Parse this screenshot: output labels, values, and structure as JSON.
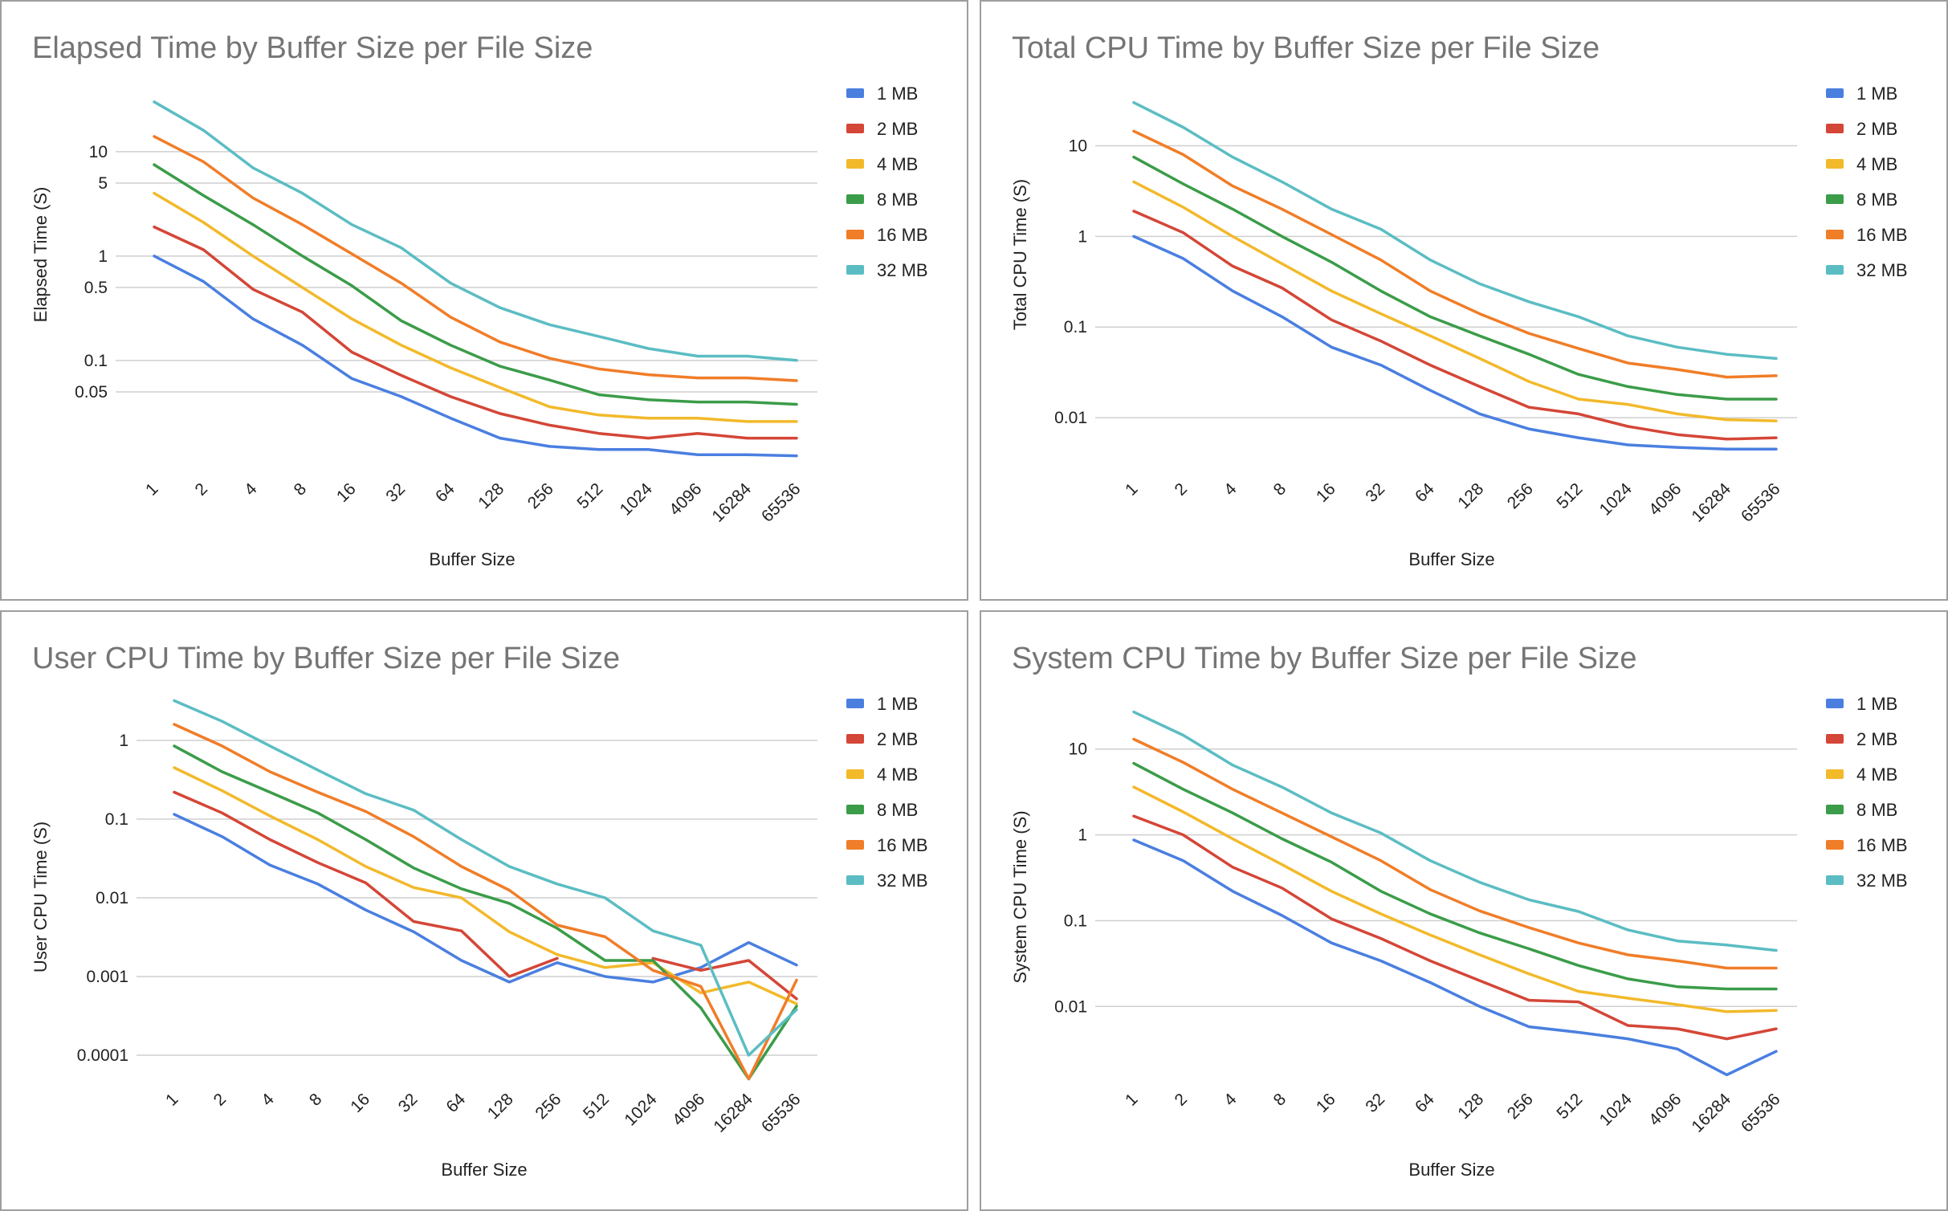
{
  "chart_data": [
    {
      "type": "line",
      "title": "Elapsed Time by Buffer Size per File Size",
      "xlabel": "Buffer Size",
      "ylabel": "Elapsed Time (S)",
      "yscale": "log",
      "ylim": [
        0.0085,
        50
      ],
      "yticks": [
        10,
        5,
        1,
        0.5,
        0.1,
        0.05
      ],
      "ytick_labels": [
        "10",
        "5",
        "1",
        "0.5",
        "0.1",
        "0.05"
      ],
      "grid": true,
      "legend": "right",
      "categories": [
        "1",
        "2",
        "4",
        "8",
        "16",
        "32",
        "64",
        "128",
        "256",
        "512",
        "1024",
        "4096",
        "16284",
        "65536"
      ],
      "series": [
        {
          "name": "1 MB",
          "color": "#4a7fe0",
          "values": [
            1.0,
            0.57,
            0.25,
            0.14,
            0.067,
            0.045,
            0.028,
            0.018,
            0.015,
            0.014,
            0.014,
            0.0125,
            0.0125,
            0.0122
          ]
        },
        {
          "name": "2 MB",
          "color": "#d44637",
          "values": [
            1.9,
            1.15,
            0.48,
            0.29,
            0.12,
            0.072,
            0.045,
            0.031,
            0.024,
            0.02,
            0.018,
            0.02,
            0.018,
            0.018
          ]
        },
        {
          "name": "4 MB",
          "color": "#f2b92b",
          "values": [
            4.0,
            2.1,
            1.0,
            0.5,
            0.25,
            0.14,
            0.085,
            0.055,
            0.036,
            0.03,
            0.028,
            0.028,
            0.026,
            0.026
          ]
        },
        {
          "name": "8 MB",
          "color": "#3b9c49",
          "values": [
            7.5,
            3.8,
            2.0,
            1.0,
            0.52,
            0.24,
            0.14,
            0.088,
            0.065,
            0.047,
            0.042,
            0.04,
            0.04,
            0.038
          ]
        },
        {
          "name": "16 MB",
          "color": "#f07d28",
          "values": [
            14,
            8.0,
            3.6,
            2.0,
            1.05,
            0.55,
            0.26,
            0.15,
            0.105,
            0.083,
            0.073,
            0.068,
            0.068,
            0.064
          ]
        },
        {
          "name": "32 MB",
          "color": "#5bbdc3",
          "values": [
            30,
            16,
            7.0,
            4.0,
            2.0,
            1.2,
            0.55,
            0.32,
            0.22,
            0.17,
            0.13,
            0.11,
            0.11,
            0.1
          ]
        }
      ]
    },
    {
      "type": "line",
      "title": "Total CPU Time by Buffer Size per File Size",
      "xlabel": "Buffer Size",
      "ylabel": "Total CPU Time (S)",
      "yscale": "log",
      "ylim": [
        0.0025,
        55
      ],
      "yticks": [
        10,
        1,
        0.1,
        0.01
      ],
      "ytick_labels": [
        "10",
        "1",
        "0.1",
        "0.01"
      ],
      "grid": true,
      "legend": "right",
      "categories": [
        "1",
        "2",
        "4",
        "8",
        "16",
        "32",
        "64",
        "128",
        "256",
        "512",
        "1024",
        "4096",
        "16284",
        "65536"
      ],
      "series": [
        {
          "name": "1 MB",
          "color": "#4a7fe0",
          "values": [
            1.0,
            0.57,
            0.25,
            0.13,
            0.06,
            0.038,
            0.02,
            0.011,
            0.0075,
            0.006,
            0.005,
            0.0047,
            0.0045,
            0.0045
          ]
        },
        {
          "name": "2 MB",
          "color": "#d44637",
          "values": [
            1.9,
            1.1,
            0.47,
            0.27,
            0.12,
            0.07,
            0.038,
            0.022,
            0.013,
            0.011,
            0.008,
            0.0065,
            0.0058,
            0.006
          ]
        },
        {
          "name": "4 MB",
          "color": "#f2b92b",
          "values": [
            4.0,
            2.1,
            1.0,
            0.5,
            0.25,
            0.14,
            0.08,
            0.045,
            0.025,
            0.016,
            0.014,
            0.011,
            0.0095,
            0.0092
          ]
        },
        {
          "name": "8 MB",
          "color": "#3b9c49",
          "values": [
            7.5,
            3.8,
            2.0,
            1.0,
            0.52,
            0.25,
            0.13,
            0.08,
            0.05,
            0.03,
            0.022,
            0.018,
            0.016,
            0.016
          ]
        },
        {
          "name": "16 MB",
          "color": "#f07d28",
          "values": [
            14.5,
            8.0,
            3.6,
            2.0,
            1.05,
            0.55,
            0.25,
            0.14,
            0.085,
            0.058,
            0.04,
            0.034,
            0.028,
            0.029
          ]
        },
        {
          "name": "32 MB",
          "color": "#5bbdc3",
          "values": [
            30,
            16,
            7.5,
            4.0,
            2.0,
            1.2,
            0.55,
            0.3,
            0.19,
            0.13,
            0.08,
            0.06,
            0.05,
            0.045
          ]
        }
      ]
    },
    {
      "type": "line",
      "title": "User CPU Time by Buffer Size per File Size",
      "xlabel": "Buffer Size",
      "ylabel": "User CPU Time (S)",
      "yscale": "log",
      "ylim": [
        4.5e-05,
        4.5
      ],
      "yticks": [
        1,
        0.1,
        0.01,
        0.001,
        0.0001
      ],
      "ytick_labels": [
        "1",
        "0.1",
        "0.01",
        "0.001",
        "0.0001"
      ],
      "grid": true,
      "legend": "right",
      "categories": [
        "1",
        "2",
        "4",
        "8",
        "16",
        "32",
        "64",
        "128",
        "256",
        "512",
        "1024",
        "4096",
        "16284",
        "65536"
      ],
      "series": [
        {
          "name": "1 MB",
          "color": "#4a7fe0",
          "values": [
            0.115,
            0.06,
            0.026,
            0.015,
            0.007,
            0.0037,
            0.0016,
            0.00085,
            0.0015,
            0.001,
            0.00085,
            0.0013,
            0.0027,
            0.0014
          ]
        },
        {
          "name": "2 MB",
          "color": "#d44637",
          "values": [
            0.22,
            0.12,
            0.055,
            0.028,
            0.0155,
            0.005,
            0.0038,
            0.001,
            0.0017,
            null,
            0.0017,
            0.0012,
            0.0016,
            0.00052
          ]
        },
        {
          "name": "4 MB",
          "color": "#f2b92b",
          "values": [
            0.45,
            0.23,
            0.11,
            0.055,
            0.025,
            0.0135,
            0.01,
            0.0037,
            0.0019,
            0.0013,
            0.0015,
            0.00062,
            0.00085,
            0.00045
          ]
        },
        {
          "name": "8 MB",
          "color": "#3b9c49",
          "values": [
            0.85,
            0.4,
            0.22,
            0.12,
            0.055,
            0.024,
            0.013,
            0.0085,
            0.0041,
            0.0016,
            0.0016,
            0.0004,
            5e-05,
            0.00042
          ]
        },
        {
          "name": "16 MB",
          "color": "#f07d28",
          "values": [
            1.6,
            0.85,
            0.4,
            0.22,
            0.125,
            0.06,
            0.025,
            0.0125,
            0.0045,
            0.0032,
            0.0012,
            0.00075,
            5e-05,
            0.0009
          ]
        },
        {
          "name": "32 MB",
          "color": "#5bbdc3",
          "values": [
            3.2,
            1.75,
            0.85,
            0.42,
            0.21,
            0.13,
            0.055,
            0.025,
            0.015,
            0.01,
            0.0038,
            0.0025,
            0.0001,
            0.00038
          ]
        }
      ]
    },
    {
      "type": "line",
      "title": "System CPU Time by Buffer Size per File Size",
      "xlabel": "Buffer Size",
      "ylabel": "System CPU Time (S)",
      "yscale": "log",
      "ylim": [
        0.0013,
        50
      ],
      "yticks": [
        10,
        1,
        0.1,
        0.01
      ],
      "ytick_labels": [
        "10",
        "1",
        "0.1",
        "0.01"
      ],
      "grid": true,
      "legend": "right",
      "categories": [
        "1",
        "2",
        "4",
        "8",
        "16",
        "32",
        "64",
        "128",
        "256",
        "512",
        "1024",
        "4096",
        "16284",
        "65536"
      ],
      "series": [
        {
          "name": "1 MB",
          "color": "#4a7fe0",
          "values": [
            0.87,
            0.5,
            0.22,
            0.115,
            0.055,
            0.034,
            0.019,
            0.01,
            0.0058,
            0.005,
            0.0042,
            0.0032,
            0.0016,
            0.003
          ]
        },
        {
          "name": "2 MB",
          "color": "#d44637",
          "values": [
            1.65,
            1.0,
            0.42,
            0.24,
            0.105,
            0.062,
            0.034,
            0.02,
            0.0118,
            0.0113,
            0.006,
            0.0055,
            0.0042,
            0.0055
          ]
        },
        {
          "name": "4 MB",
          "color": "#f2b92b",
          "values": [
            3.6,
            1.85,
            0.9,
            0.45,
            0.22,
            0.12,
            0.068,
            0.04,
            0.024,
            0.015,
            0.0125,
            0.0105,
            0.0087,
            0.009
          ]
        },
        {
          "name": "8 MB",
          "color": "#3b9c49",
          "values": [
            6.8,
            3.4,
            1.8,
            0.9,
            0.48,
            0.22,
            0.12,
            0.072,
            0.047,
            0.03,
            0.021,
            0.017,
            0.016,
            0.016
          ]
        },
        {
          "name": "16 MB",
          "color": "#f07d28",
          "values": [
            13,
            7.0,
            3.4,
            1.8,
            0.95,
            0.5,
            0.23,
            0.13,
            0.083,
            0.055,
            0.04,
            0.034,
            0.028,
            0.028
          ]
        },
        {
          "name": "32 MB",
          "color": "#5bbdc3",
          "values": [
            27,
            14.5,
            6.5,
            3.6,
            1.8,
            1.05,
            0.5,
            0.28,
            0.175,
            0.128,
            0.078,
            0.058,
            0.052,
            0.045
          ]
        }
      ]
    }
  ]
}
